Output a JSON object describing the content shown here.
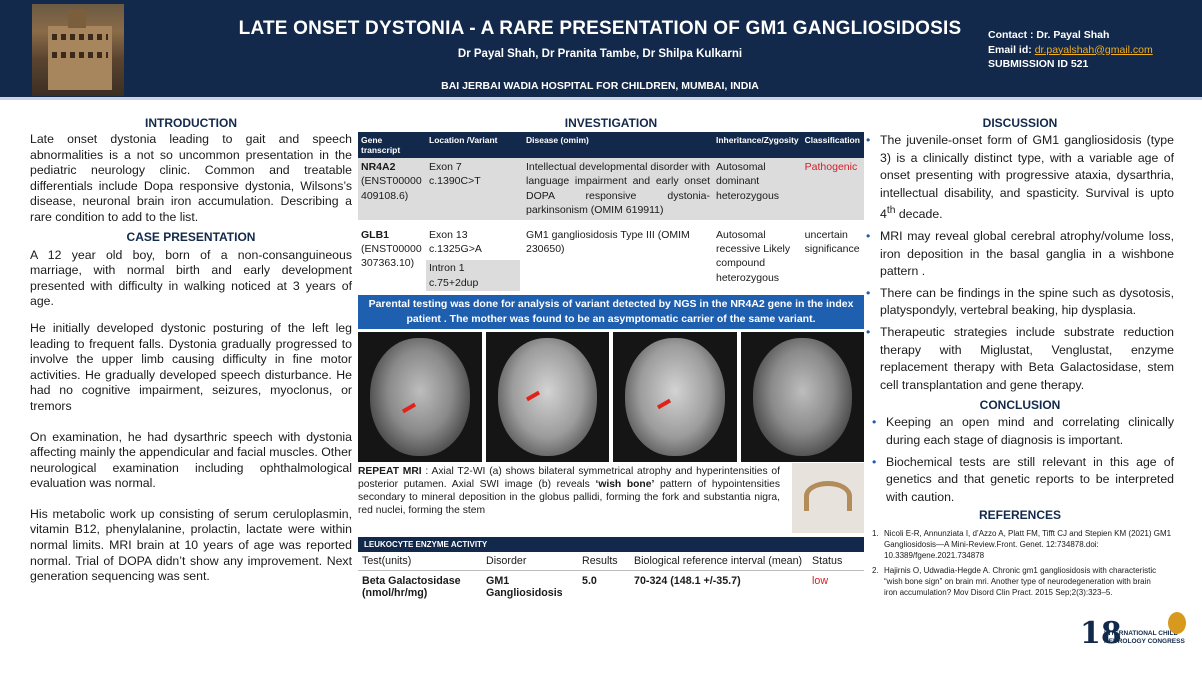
{
  "header": {
    "title": "LATE ONSET DYSTONIA - A RARE PRESENTATION OF GM1 GANGLIOSIDOSIS",
    "authors": "Dr Payal Shah, Dr Pranita Tambe, Dr Shilpa Kulkarni",
    "hospital": "BAI JERBAI WADIA HOSPITAL FOR CHILDREN, MUMBAI, INDIA",
    "contact_line": "Contact  : Dr. Payal Shah",
    "email_label": "Email id: ",
    "email": "dr.payalshah@gmail.com",
    "submission": "SUBMISSION ID 521"
  },
  "introduction": {
    "heading": "INTRODUCTION",
    "text": "Late onset dystonia leading to gait and speech abnormalities is a not so uncommon presentation in the pediatric neurology clinic. Common and treatable differentials include Dopa responsive dystonia, Wilsons’s disease, neuronal brain iron accumulation. Describing a rare condition to add to the list."
  },
  "case": {
    "heading": "CASE PRESENTATION",
    "paragraphs": [
      "A 12 year old boy, born of a non-consanguineous marriage, with normal birth and early development presented with difficulty in walking noticed at 3 years of age.",
      "He initially developed dystonic posturing of the left leg leading to frequent falls. Dystonia gradually progressed to involve the upper limb causing difficulty in fine motor activities. He gradually developed speech disturbance. He had no cognitive impairment, seizures, myoclonus, or tremors",
      "On examination, he had dysarthric speech with dystonia affecting mainly the appendicular and facial muscles. Other neurological examination including ophthalmological evaluation was normal.",
      "His metabolic work up consisting of serum ceruloplasmin, vitamin B12, phenylalanine, prolactin, lactate were within normal limits. MRI brain at 10 years of age was reported normal. Trial of DOPA didn’t show any improvement. Next generation sequencing was sent."
    ]
  },
  "investigation": {
    "heading": "INVESTIGATION",
    "columns": [
      "Gene transcript",
      "Location /Variant",
      "Disease (omim)",
      "Inheritance/Zygosity",
      "Classification"
    ],
    "rows": [
      {
        "gene": "NR4A2",
        "transcript": "(ENST00000409108.6)",
        "location": "Exon 7",
        "variant": "c.1390C>T",
        "disease": "Intellectual developmental disorder with language impairment and early onset DOPA responsive dystonia- parkinsonism (OMIM 619911)",
        "inheritance": "Autosomal dominant heterozygous",
        "classification": "Pathogenic"
      },
      {
        "gene": "GLB1",
        "transcript": "(ENST00000307363.10)",
        "location": "Exon 13",
        "variant": "c.1325G>A",
        "intron": "Intron 1",
        "intron_variant": "c.75+2dup",
        "disease": "GM1 gangliosidosis Type III (OMIM 230650)",
        "inheritance": "Autosomal recessive Likely compound heterozygous",
        "classification": "uncertain significance"
      }
    ],
    "banner": "Parental testing was done for analysis of variant detected by NGS in the NR4A2 gene in the index patient . The mother was found to be an asymptomatic carrier of the same variant.",
    "mri_caption_lead": "REPEAT MRI",
    "mri_caption_mid": " : Axial T2-WI (a) shows bilateral symmetrical atrophy and hyperintensities of posterior putamen. Axial SWI image (b) reveals ",
    "mri_caption_emph": "‘wish bone’",
    "mri_caption_tail": " pattern of hypointensities secondary to mineral deposition in the globus pallidi, forming the fork and substantia nigra, red nuclei, forming the stem",
    "enzyme": {
      "heading": "LEUKOCYTE ENZYME ACTIVITY",
      "columns": [
        "Test(units)",
        "Disorder",
        "Results",
        "Biological reference interval (mean)",
        "Status"
      ],
      "row": {
        "test": "Beta Galactosidase (nmol/hr/mg)",
        "disorder": "GM1 Gangliosidosis",
        "result": "5.0",
        "reference": "70-324 (148.1 +/-35.7)",
        "status": "low"
      }
    }
  },
  "discussion": {
    "heading": "DISCUSSION",
    "b1_pre": "The juvenile-onset form of GM1 gangliosidosis (type 3) is a clinically distinct type, with a variable age of onset presenting with progressive ataxia, dysarthria, intellectual disability, and spasticity. Survival is upto 4",
    "b1_sup": "th",
    "b1_post": " decade.",
    "b2": "MRI may reveal global cerebral atrophy/volume loss, iron deposition in the basal ganglia in a wishbone pattern .",
    "b3": "There can be findings in the spine such as dysotosis, platyspondyly, vertebral beaking, hip dysplasia.",
    "b4": "Therapeutic strategies include substrate reduction therapy with Miglustat, Venglustat, enzyme replacement therapy with Beta Galactosidase, stem cell transplantation and gene therapy."
  },
  "conclusion": {
    "heading": "CONCLUSION",
    "items": [
      "Keeping an open mind and correlating clinically during each stage of diagnosis is important.",
      "Biochemical tests are still relevant in this age of genetics and that genetic reports to be interpreted with caution."
    ]
  },
  "references": {
    "heading": "REFERENCES",
    "items": [
      {
        "num": "1.",
        "text": "Nicoli E-R, Annunziata I, d’Azzo A, Platt FM, Tifft CJ and Stepien KM (2021) GM1 Gangliosidosis—A Mini-Review.Front. Genet. 12:734878.doi: 10.3389/fgene.2021.734878"
      },
      {
        "num": "2.",
        "text": "Hajirnis O, Udwadia-Hegde A. Chronic gm1 gangliosidosis with characteristic “wish bone sign” on brain mri. Another type of neurodegeneration with brain iron accumulation? Mov Disord Clin Pract. 2015 Sep;2(3):323–5."
      }
    ]
  },
  "logo": {
    "mark": "18",
    "text": "INTERNATIONAL CHILD NEUROLOGY CONGRESS"
  },
  "colors": {
    "header_bg": "#13294b",
    "banner_bg": "#1e5fb0",
    "pathogenic": "#d0202a",
    "email": "#f2b01e"
  }
}
